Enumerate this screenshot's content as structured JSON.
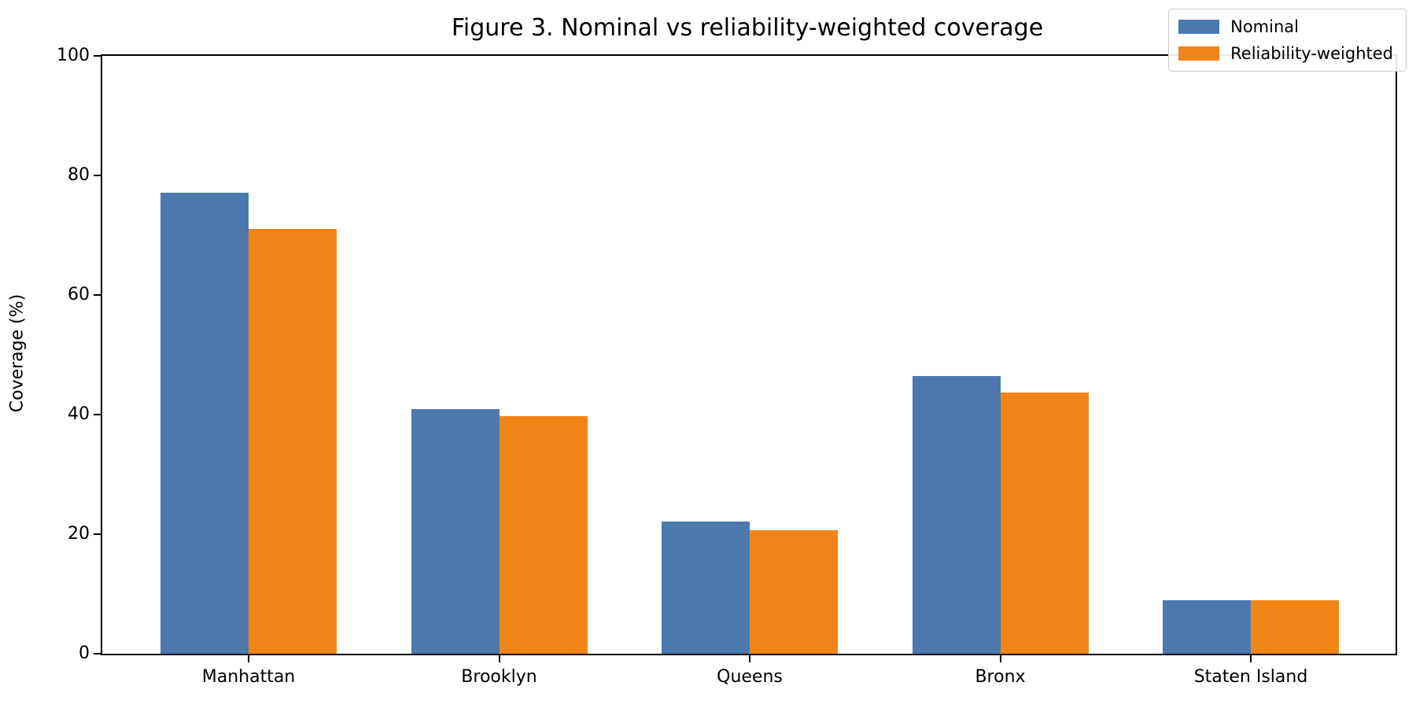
{
  "title": "Figure 3. Nominal vs reliability-weighted coverage",
  "ylabel": "Coverage (%)",
  "chart_data": {
    "type": "bar",
    "title": "Figure 3. Nominal vs reliability-weighted coverage",
    "xlabel": "",
    "ylabel": "Coverage (%)",
    "categories": [
      "Manhattan",
      "Brooklyn",
      "Queens",
      "Bronx",
      "Staten Island"
    ],
    "series": [
      {
        "name": "Nominal",
        "color": "#4b79ad",
        "values": [
          77.1,
          40.9,
          22.1,
          46.5,
          8.9
        ]
      },
      {
        "name": "Reliability-weighted",
        "color": "#f28518",
        "values": [
          71.1,
          39.8,
          20.7,
          43.7,
          8.9
        ]
      }
    ],
    "ylim": [
      0,
      100
    ],
    "yticks": [
      0,
      20,
      40,
      60,
      80,
      100
    ],
    "grid": false,
    "legend_position": "upper right"
  },
  "layout_colors": {
    "axis": "#000000",
    "legend_border": "#cccccc",
    "background": "#ffffff"
  }
}
